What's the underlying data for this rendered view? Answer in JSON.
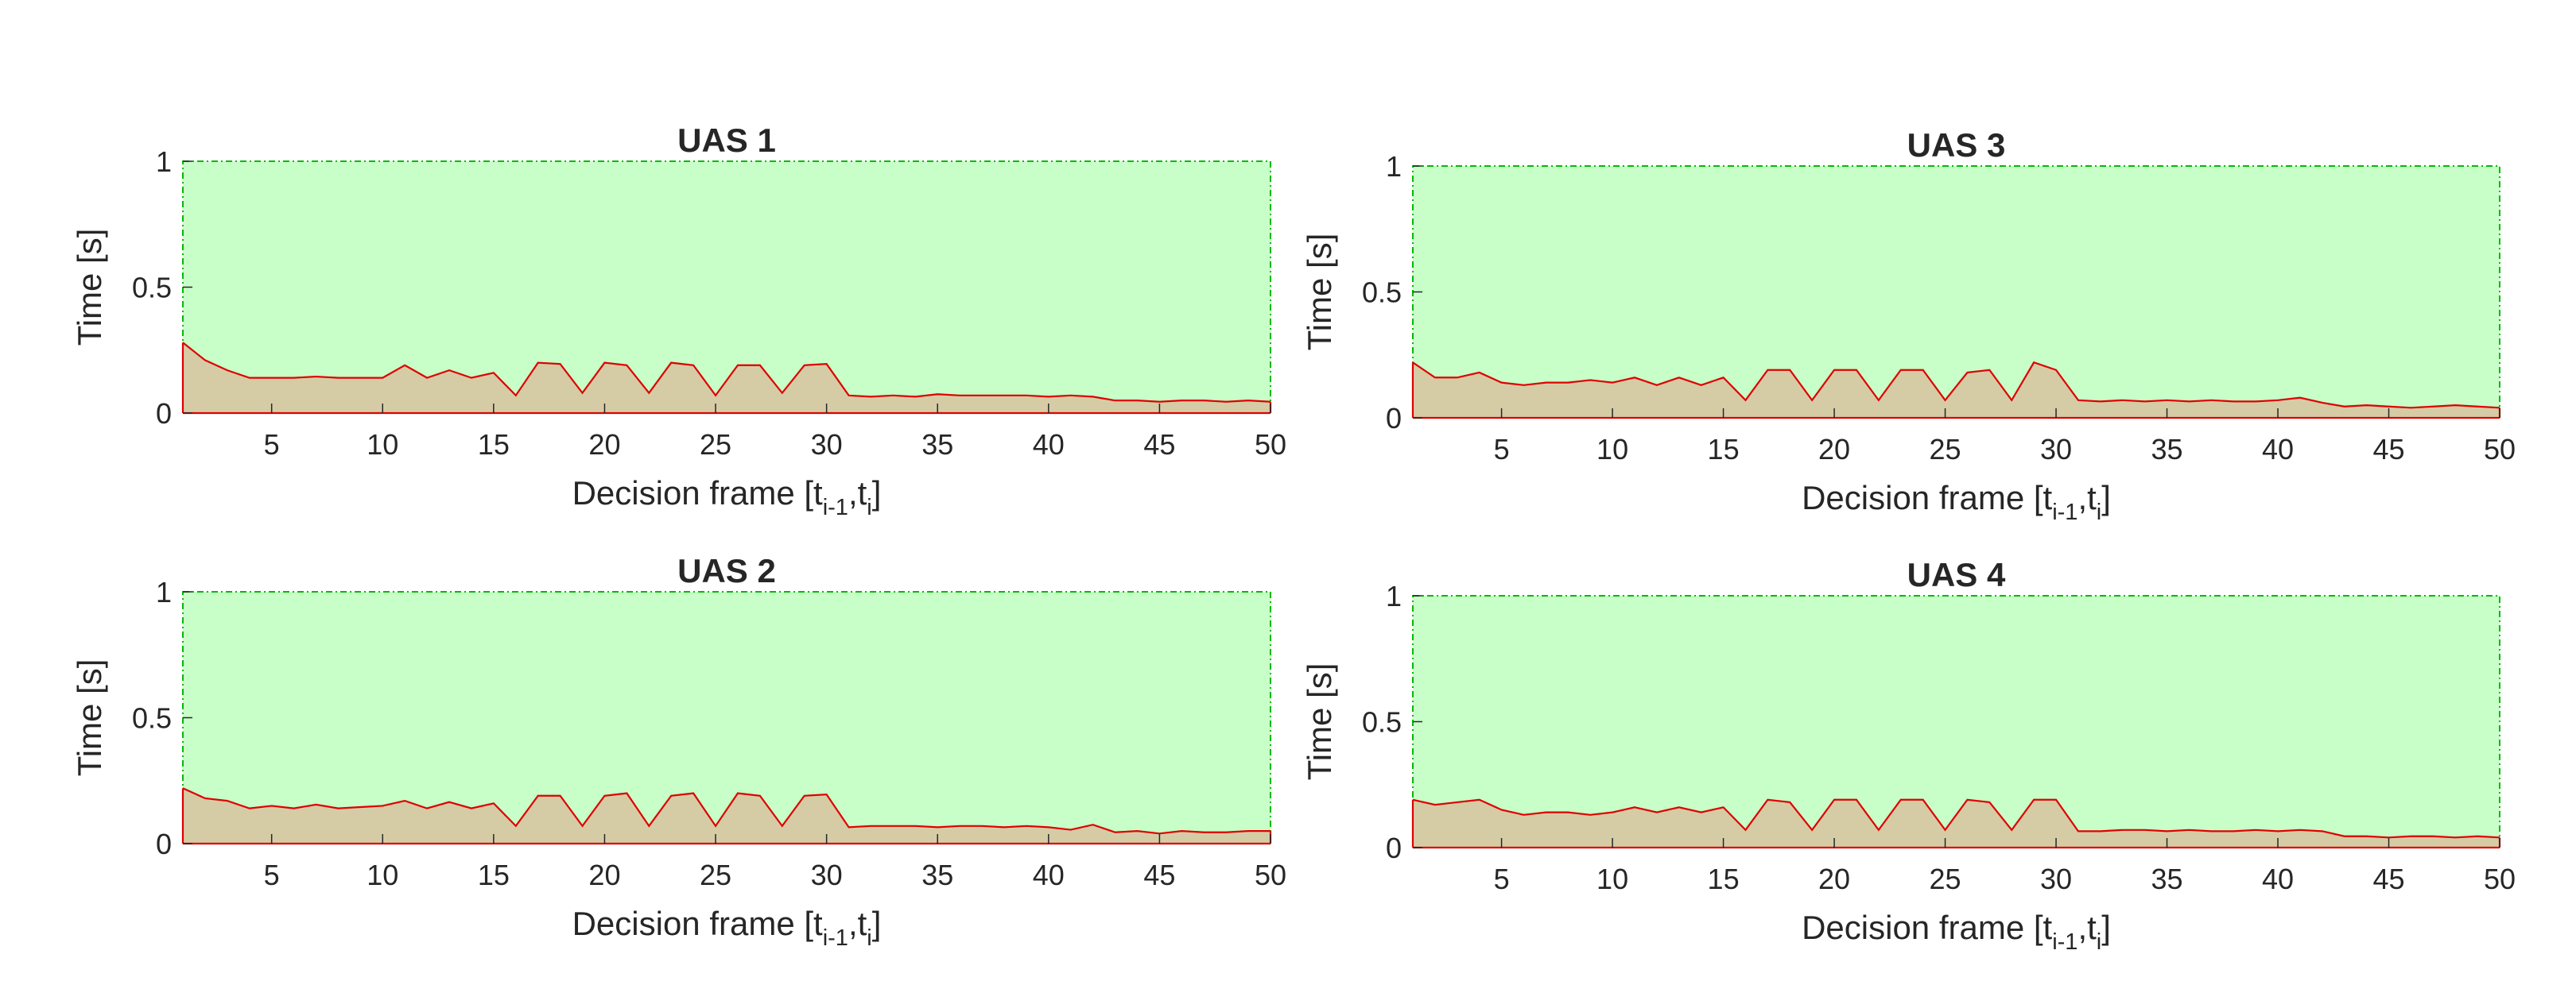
{
  "chart_data": [
    {
      "type": "area",
      "title": "UAS 1",
      "xlabel": {
        "base": "Decision frame [t",
        "sub1": "i-1",
        "mid": ",t",
        "sub2": "i",
        "end": "]"
      },
      "ylabel": "Time [s]",
      "xlim": [
        1,
        50
      ],
      "ylim": [
        0,
        1
      ],
      "xticks": [
        5,
        10,
        15,
        20,
        25,
        30,
        35,
        40,
        45,
        50
      ],
      "yticks": [
        0,
        0.5,
        1
      ],
      "ytick_labels": [
        "0",
        "0.5",
        "1"
      ],
      "area_color": "#c8ffc8",
      "area_edge": "#00bb00",
      "series": [
        {
          "color": "#e00000",
          "fill": "#d5cca6",
          "x": [
            1,
            2,
            3,
            4,
            5,
            6,
            7,
            8,
            9,
            10,
            11,
            12,
            13,
            14,
            15,
            16,
            17,
            18,
            19,
            20,
            21,
            22,
            23,
            24,
            25,
            26,
            27,
            28,
            29,
            30,
            31,
            32,
            33,
            34,
            35,
            36,
            37,
            38,
            39,
            40,
            41,
            42,
            43,
            44,
            45,
            46,
            47,
            48,
            49,
            50
          ],
          "values": [
            0.28,
            0.21,
            0.17,
            0.14,
            0.14,
            0.14,
            0.145,
            0.14,
            0.14,
            0.14,
            0.19,
            0.14,
            0.17,
            0.14,
            0.16,
            0.07,
            0.2,
            0.195,
            0.08,
            0.2,
            0.19,
            0.08,
            0.2,
            0.19,
            0.07,
            0.19,
            0.19,
            0.08,
            0.19,
            0.195,
            0.07,
            0.065,
            0.07,
            0.065,
            0.075,
            0.07,
            0.07,
            0.07,
            0.07,
            0.065,
            0.07,
            0.065,
            0.05,
            0.05,
            0.045,
            0.05,
            0.05,
            0.045,
            0.05,
            0.045
          ]
        }
      ]
    },
    {
      "type": "area",
      "title": "UAS 2",
      "xlabel": {
        "base": "Decision frame [t",
        "sub1": "i-1",
        "mid": ",t",
        "sub2": "i",
        "end": "]"
      },
      "ylabel": "Time [s]",
      "xlim": [
        1,
        50
      ],
      "ylim": [
        0,
        1
      ],
      "xticks": [
        5,
        10,
        15,
        20,
        25,
        30,
        35,
        40,
        45,
        50
      ],
      "yticks": [
        0,
        0.5,
        1
      ],
      "ytick_labels": [
        "0",
        "0.5",
        "1"
      ],
      "area_color": "#c8ffc8",
      "area_edge": "#00bb00",
      "series": [
        {
          "color": "#e00000",
          "fill": "#d5cca6",
          "x": [
            1,
            2,
            3,
            4,
            5,
            6,
            7,
            8,
            9,
            10,
            11,
            12,
            13,
            14,
            15,
            16,
            17,
            18,
            19,
            20,
            21,
            22,
            23,
            24,
            25,
            26,
            27,
            28,
            29,
            30,
            31,
            32,
            33,
            34,
            35,
            36,
            37,
            38,
            39,
            40,
            41,
            42,
            43,
            44,
            45,
            46,
            47,
            48,
            49,
            50
          ],
          "values": [
            0.22,
            0.18,
            0.17,
            0.14,
            0.15,
            0.14,
            0.155,
            0.14,
            0.145,
            0.15,
            0.17,
            0.14,
            0.165,
            0.14,
            0.16,
            0.07,
            0.19,
            0.19,
            0.07,
            0.19,
            0.2,
            0.07,
            0.19,
            0.2,
            0.07,
            0.2,
            0.19,
            0.07,
            0.19,
            0.195,
            0.065,
            0.07,
            0.07,
            0.07,
            0.065,
            0.07,
            0.07,
            0.065,
            0.07,
            0.065,
            0.055,
            0.075,
            0.045,
            0.05,
            0.04,
            0.05,
            0.045,
            0.045,
            0.05,
            0.05
          ]
        }
      ]
    },
    {
      "type": "area",
      "title": "UAS 3",
      "xlabel": {
        "base": "Decision frame [t",
        "sub1": "i-1",
        "mid": ",t",
        "sub2": "i",
        "end": "]"
      },
      "ylabel": "Time [s]",
      "xlim": [
        1,
        50
      ],
      "ylim": [
        0,
        1
      ],
      "xticks": [
        5,
        10,
        15,
        20,
        25,
        30,
        35,
        40,
        45,
        50
      ],
      "yticks": [
        0,
        0.5,
        1
      ],
      "ytick_labels": [
        "0",
        "0.5",
        "1"
      ],
      "area_color": "#c8ffc8",
      "area_edge": "#00bb00",
      "series": [
        {
          "color": "#e00000",
          "fill": "#d5cca6",
          "x": [
            1,
            2,
            3,
            4,
            5,
            6,
            7,
            8,
            9,
            10,
            11,
            12,
            13,
            14,
            15,
            16,
            17,
            18,
            19,
            20,
            21,
            22,
            23,
            24,
            25,
            26,
            27,
            28,
            29,
            30,
            31,
            32,
            33,
            34,
            35,
            36,
            37,
            38,
            39,
            40,
            41,
            42,
            43,
            44,
            45,
            46,
            47,
            48,
            49,
            50
          ],
          "values": [
            0.22,
            0.16,
            0.16,
            0.18,
            0.14,
            0.13,
            0.14,
            0.14,
            0.15,
            0.14,
            0.16,
            0.13,
            0.16,
            0.13,
            0.16,
            0.07,
            0.19,
            0.19,
            0.07,
            0.19,
            0.19,
            0.07,
            0.19,
            0.19,
            0.07,
            0.18,
            0.19,
            0.07,
            0.22,
            0.19,
            0.07,
            0.065,
            0.07,
            0.065,
            0.07,
            0.065,
            0.07,
            0.065,
            0.065,
            0.07,
            0.08,
            0.06,
            0.045,
            0.05,
            0.045,
            0.04,
            0.045,
            0.05,
            0.045,
            0.04
          ]
        }
      ]
    },
    {
      "type": "area",
      "title": "UAS 4",
      "xlabel": {
        "base": "Decision frame [t",
        "sub1": "i-1",
        "mid": ",t",
        "sub2": "i",
        "end": "]"
      },
      "ylabel": "Time [s]",
      "xlim": [
        1,
        50
      ],
      "ylim": [
        0,
        1
      ],
      "xticks": [
        5,
        10,
        15,
        20,
        25,
        30,
        35,
        40,
        45,
        50
      ],
      "yticks": [
        0,
        0.5,
        1
      ],
      "ytick_labels": [
        "0",
        "0.5",
        "1"
      ],
      "area_color": "#c8ffc8",
      "area_edge": "#00bb00",
      "series": [
        {
          "color": "#e00000",
          "fill": "#d5cca6",
          "x": [
            1,
            2,
            3,
            4,
            5,
            6,
            7,
            8,
            9,
            10,
            11,
            12,
            13,
            14,
            15,
            16,
            17,
            18,
            19,
            20,
            21,
            22,
            23,
            24,
            25,
            26,
            27,
            28,
            29,
            30,
            31,
            32,
            33,
            34,
            35,
            36,
            37,
            38,
            39,
            40,
            41,
            42,
            43,
            44,
            45,
            46,
            47,
            48,
            49,
            50
          ],
          "values": [
            0.19,
            0.17,
            0.18,
            0.19,
            0.15,
            0.13,
            0.14,
            0.14,
            0.13,
            0.14,
            0.16,
            0.14,
            0.16,
            0.14,
            0.16,
            0.07,
            0.19,
            0.18,
            0.07,
            0.19,
            0.19,
            0.07,
            0.19,
            0.19,
            0.07,
            0.19,
            0.18,
            0.07,
            0.19,
            0.19,
            0.065,
            0.065,
            0.07,
            0.07,
            0.065,
            0.07,
            0.065,
            0.065,
            0.07,
            0.065,
            0.07,
            0.065,
            0.045,
            0.045,
            0.04,
            0.045,
            0.045,
            0.04,
            0.045,
            0.04
          ]
        }
      ]
    }
  ]
}
